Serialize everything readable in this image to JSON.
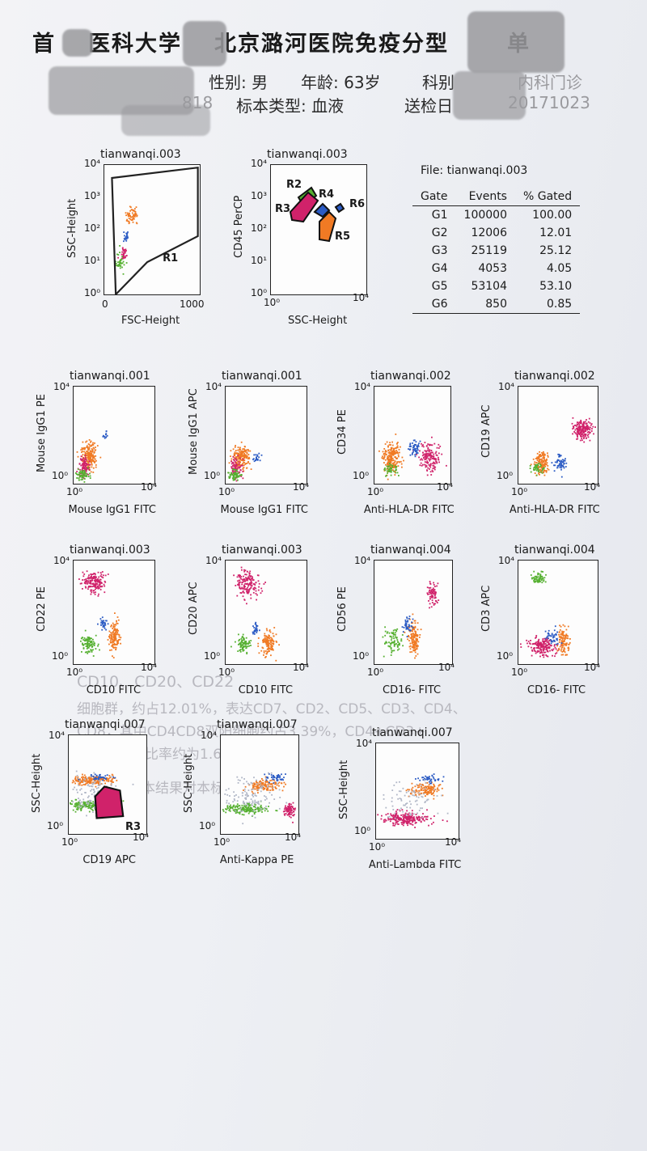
{
  "header": {
    "title_left": "首",
    "title_mid": "医科大学",
    "title_right": "北京潞河医院免疫分型",
    "title_end": "单",
    "row1": {
      "gender_label": "性别:",
      "gender": "男",
      "age_label": "年龄:",
      "age": "63岁",
      "dept_label": "科别",
      "dept": "内科门诊"
    },
    "row2": {
      "id_partial": "818",
      "sample_label": "标本类型:",
      "sample": "血液",
      "date_label": "送检日",
      "date_partial": "20171023"
    }
  },
  "stats": {
    "file": "File: tianwanqi.003",
    "columns": [
      "Gate",
      "Events",
      "% Gated"
    ],
    "rows": [
      {
        "gate": "G1",
        "events": "100000",
        "pct": "100.00"
      },
      {
        "gate": "G2",
        "events": "12006",
        "pct": "12.01"
      },
      {
        "gate": "G3",
        "events": "25119",
        "pct": "25.12"
      },
      {
        "gate": "G4",
        "events": "4053",
        "pct": "4.05"
      },
      {
        "gate": "G5",
        "events": "53104",
        "pct": "53.10"
      },
      {
        "gate": "G6",
        "events": "850",
        "pct": "0.85"
      }
    ]
  },
  "ticks": {
    "t0": "10⁰",
    "t1": "10¹",
    "t2": "10²",
    "t3": "10³",
    "t4": "10⁴",
    "lin0": "0",
    "lin1000": "1000"
  },
  "panels": [
    {
      "title": "tianwanqi.003",
      "xlabel": "FSC-Height",
      "ylabel": "SSC-Height"
    },
    {
      "title": "tianwanqi.003",
      "xlabel": "SSC-Height",
      "ylabel": "CD45 PerCP"
    },
    {
      "title": "tianwanqi.001",
      "xlabel": "Mouse IgG1 FITC",
      "ylabel": "Mouse IgG1 PE"
    },
    {
      "title": "tianwanqi.001",
      "xlabel": "Mouse IgG1 FITC",
      "ylabel": "Mouse IgG1 APC"
    },
    {
      "title": "tianwanqi.002",
      "xlabel": "Anti-HLA-DR FITC",
      "ylabel": "CD34 PE"
    },
    {
      "title": "tianwanqi.002",
      "xlabel": "Anti-HLA-DR FITC",
      "ylabel": "CD19 APC"
    },
    {
      "title": "tianwanqi.003",
      "xlabel": "CD10 FITC",
      "ylabel": "CD22 PE"
    },
    {
      "title": "tianwanqi.003",
      "xlabel": "CD10 FITC",
      "ylabel": "CD20 APC"
    },
    {
      "title": "tianwanqi.004",
      "xlabel": "CD16- FITC",
      "ylabel": "CD56 PE"
    },
    {
      "title": "tianwanqi.004",
      "xlabel": "CD16- FITC",
      "ylabel": "CD3 APC"
    },
    {
      "title": "tianwanqi.007",
      "xlabel": "CD19 APC",
      "ylabel": "SSC-Height"
    },
    {
      "title": "tianwanqi.007",
      "xlabel": "Anti-Kappa PE",
      "ylabel": "SSC-Height"
    },
    {
      "title": "tianwanqi.007",
      "xlabel": "Anti-Lambda FITC",
      "ylabel": "SSC-Height"
    }
  ],
  "gates": {
    "r1": "R1",
    "r2": "R2",
    "r3": "R3",
    "r4": "R4",
    "r5": "R5",
    "r6": "R6"
  },
  "bleed_through": {
    "line1": "CD10、CD20、CD22",
    "line2": "细胞群，约占12.01%，表达CD7、CD2、CD5、CD3、CD4、",
    "line3": "CD8，其中CD4CD8双阳细胞约占3.39%，CD4+CD3+",
    "line4": "CD3+细胞比率约为1.62",
    "line5": "本结果对本标本负责"
  },
  "colors": {
    "magenta": "#d0226a",
    "orange": "#f07a24",
    "green": "#55b030",
    "blue": "#2b5bc4",
    "grey": "#b0b6c6"
  }
}
